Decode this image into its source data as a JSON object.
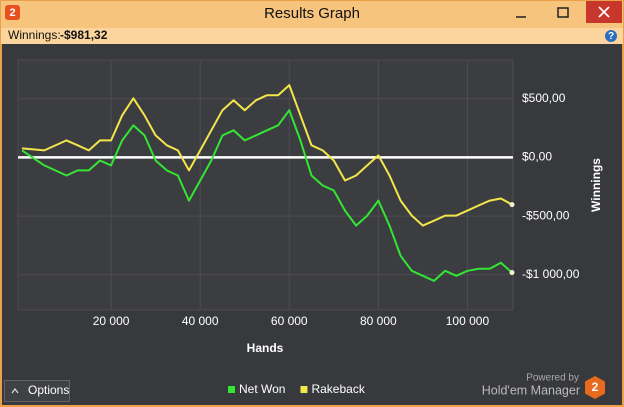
{
  "window": {
    "title": "Results Graph",
    "icon": "2"
  },
  "toolbar": {
    "winnings_label": "Winnings:",
    "winnings_value": "-$981,32",
    "help": "?"
  },
  "chart_data": {
    "type": "line",
    "x_label": "Hands",
    "y_label": "Winnings",
    "x": [
      0,
      5000,
      10000,
      12500,
      15000,
      17500,
      20000,
      22500,
      25000,
      27500,
      30000,
      32500,
      35000,
      37500,
      40000,
      42500,
      45000,
      47500,
      50000,
      52500,
      55000,
      57500,
      60000,
      62500,
      65000,
      67500,
      70000,
      72500,
      75000,
      77500,
      80000,
      82500,
      85000,
      87500,
      90000,
      92500,
      95000,
      97500,
      100000,
      102500,
      105000,
      107500,
      110000
    ],
    "series": [
      {
        "name": "Net Won",
        "color": "#33e633",
        "values": [
          60,
          -68,
          -154,
          -111,
          -111,
          -26,
          -68,
          145,
          274,
          188,
          -26,
          -111,
          -154,
          -368,
          -197,
          -26,
          188,
          231,
          145,
          188,
          231,
          274,
          402,
          145,
          -154,
          -239,
          -282,
          -453,
          -581,
          -496,
          -368,
          -581,
          -838,
          -966,
          -1009,
          -1052,
          -966,
          -1009,
          -966,
          -949,
          -949,
          -898,
          -981
        ]
      },
      {
        "name": "Rakeback",
        "color": "#f2e64a",
        "values": [
          77,
          60,
          145,
          103,
          60,
          145,
          145,
          359,
          504,
          359,
          188,
          103,
          60,
          -111,
          60,
          231,
          402,
          487,
          402,
          487,
          530,
          530,
          616,
          359,
          103,
          60,
          -26,
          -197,
          -154,
          -68,
          17,
          -154,
          -368,
          -496,
          -581,
          -539,
          -496,
          -496,
          -453,
          -410,
          -368,
          -350,
          -402
        ]
      }
    ],
    "xlim": [
      0,
      110000
    ],
    "ylim": [
      -1300,
      830
    ],
    "xticks": [
      {
        "value": 20000,
        "label": "20 000"
      },
      {
        "value": 40000,
        "label": "40 000"
      },
      {
        "value": 60000,
        "label": "60 000"
      },
      {
        "value": 80000,
        "label": "80 000"
      },
      {
        "value": 100000,
        "label": "100 000"
      }
    ],
    "yticks": [
      {
        "value": 500,
        "label": "$500,00"
      },
      {
        "value": 0,
        "label": "$0,00"
      },
      {
        "value": -500,
        "label": "-$500,00"
      },
      {
        "value": -1000,
        "label": "-$1 000,00"
      }
    ],
    "grid": true,
    "legend": "bottom"
  },
  "footer": {
    "options": "Options",
    "powered_by": "Powered by",
    "brand": "Hold'em Manager",
    "brand_icon": "2"
  }
}
